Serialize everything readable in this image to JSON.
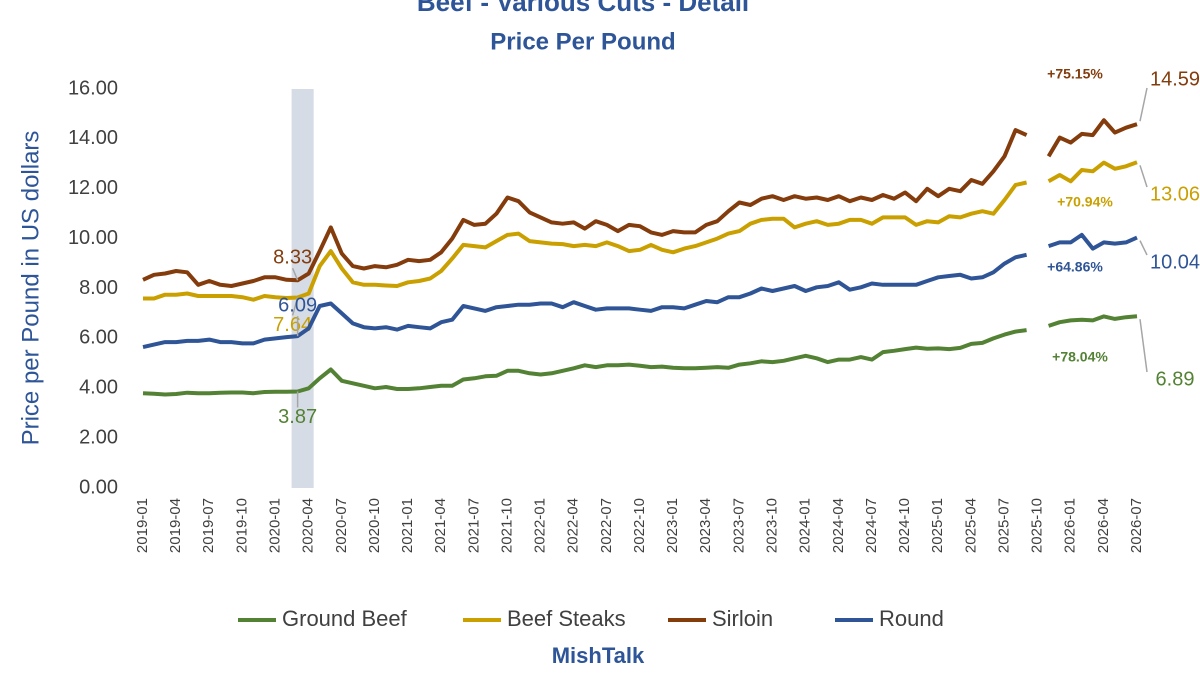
{
  "chart_data": {
    "type": "line",
    "title": "Beef - Various Cuts - Detail",
    "subtitle": "Price Per Pound",
    "y_label": "Price per Pound in US dollars",
    "source": "MishTalk",
    "categories": [
      "2019-01",
      null,
      null,
      "2019-04",
      null,
      null,
      "2019-07",
      null,
      null,
      "2019-10",
      null,
      null,
      "2020-01",
      null,
      null,
      "2020-04",
      null,
      null,
      "2020-07",
      null,
      null,
      "2020-10",
      null,
      null,
      "2021-01",
      null,
      null,
      "2021-04",
      null,
      null,
      "2021-07",
      null,
      null,
      "2021-10",
      null,
      null,
      "2022-01",
      null,
      null,
      "2022-04",
      null,
      null,
      "2022-07",
      null,
      null,
      "2022-10",
      null,
      null,
      "2023-01",
      null,
      null,
      "2023-04",
      null,
      null,
      "2023-07",
      null,
      null,
      "2023-10",
      null,
      null,
      "2024-01",
      null,
      null,
      "2024-04",
      null,
      null,
      "2024-07",
      null,
      null,
      "2024-10",
      null,
      null,
      "2025-01",
      null,
      null,
      "2025-04",
      null,
      null,
      "2025-07",
      null,
      null,
      "2025-10",
      null,
      null,
      "2026-01",
      null,
      null,
      "2026-04",
      null,
      null,
      "2026-07"
    ],
    "ylim": [
      0,
      16
    ],
    "yticks": [
      {
        "value": 0,
        "label": "0.00"
      },
      {
        "value": 2,
        "label": "2.00"
      },
      {
        "value": 4,
        "label": "4.00"
      },
      {
        "value": 6,
        "label": "6.00"
      },
      {
        "value": 8,
        "label": "8.00"
      },
      {
        "value": 10,
        "label": "10.00"
      },
      {
        "value": 12,
        "label": "12.00"
      },
      {
        "value": 14,
        "label": "14.00"
      },
      {
        "value": 16,
        "label": "16.00"
      }
    ],
    "grid": false,
    "recession_band": {
      "from": "2020-02",
      "to": "2020-04",
      "color": "#d6dce5"
    },
    "series": [
      {
        "name": "Ground Beef",
        "color": "#548235",
        "change_label": "+78.04%",
        "values": [
          3.8,
          3.78,
          3.75,
          3.77,
          3.82,
          3.8,
          3.8,
          3.82,
          3.83,
          3.83,
          3.8,
          3.85,
          3.86,
          3.86,
          3.87,
          4.0,
          4.4,
          4.75,
          4.3,
          4.2,
          4.1,
          4.0,
          4.05,
          3.97,
          3.97,
          4.0,
          4.05,
          4.1,
          4.1,
          4.35,
          4.4,
          4.48,
          4.5,
          4.7,
          4.7,
          4.6,
          4.55,
          4.6,
          4.7,
          4.8,
          4.92,
          4.85,
          4.92,
          4.92,
          4.95,
          4.9,
          4.85,
          4.87,
          4.82,
          4.8,
          4.8,
          4.82,
          4.85,
          4.82,
          4.95,
          5.0,
          5.08,
          5.05,
          5.1,
          5.2,
          5.3,
          5.2,
          5.05,
          5.15,
          5.15,
          5.25,
          5.15,
          5.45,
          5.5,
          5.57,
          5.63,
          5.58,
          5.6,
          5.57,
          5.62,
          5.78,
          5.82,
          6.0,
          6.15,
          6.27,
          6.33,
          null,
          6.5,
          6.65,
          6.72,
          6.75,
          6.72,
          6.88,
          6.78,
          6.85,
          6.89
        ],
        "value_labels": [
          null,
          null,
          null,
          null,
          null,
          null,
          null,
          null,
          null,
          null,
          null,
          null,
          null,
          null,
          "3.87",
          null,
          null,
          null,
          null,
          null,
          null,
          null,
          null,
          null,
          null,
          null,
          null,
          null,
          null,
          null,
          null,
          null,
          null,
          null,
          null,
          null,
          null,
          null,
          null,
          null,
          null,
          null,
          null,
          null,
          null,
          null,
          null,
          null,
          null,
          null,
          null,
          null,
          null,
          null,
          null,
          null,
          null,
          null,
          null,
          null,
          null,
          null,
          null,
          null,
          null,
          null,
          null,
          null,
          null,
          null,
          null,
          null,
          null,
          null,
          null,
          null,
          null,
          null,
          null,
          null,
          null,
          null,
          null,
          null,
          null,
          null,
          null,
          null,
          null,
          null,
          "6.89"
        ]
      },
      {
        "name": "Beef Steaks",
        "color": "#c9a000",
        "change_label": "+70.94%",
        "values": [
          7.6,
          7.6,
          7.75,
          7.75,
          7.8,
          7.7,
          7.7,
          7.7,
          7.7,
          7.65,
          7.55,
          7.7,
          7.65,
          7.62,
          7.64,
          7.8,
          8.9,
          9.5,
          8.8,
          8.25,
          8.15,
          8.15,
          8.12,
          8.1,
          8.25,
          8.3,
          8.4,
          8.7,
          9.2,
          9.75,
          9.7,
          9.65,
          9.9,
          10.15,
          10.2,
          9.9,
          9.85,
          9.8,
          9.78,
          9.7,
          9.75,
          9.7,
          9.85,
          9.7,
          9.5,
          9.55,
          9.75,
          9.55,
          9.45,
          9.6,
          9.7,
          9.85,
          10.0,
          10.2,
          10.3,
          10.6,
          10.75,
          10.8,
          10.8,
          10.45,
          10.6,
          10.7,
          10.55,
          10.6,
          10.75,
          10.75,
          10.6,
          10.85,
          10.85,
          10.85,
          10.55,
          10.7,
          10.65,
          10.9,
          10.85,
          11.0,
          11.1,
          11.0,
          11.55,
          12.15,
          12.25,
          null,
          12.3,
          12.55,
          12.3,
          12.75,
          12.7,
          13.05,
          12.8,
          12.9,
          13.06
        ],
        "value_labels": [
          null,
          null,
          null,
          null,
          null,
          null,
          null,
          null,
          null,
          null,
          null,
          null,
          null,
          null,
          "7.64",
          null,
          null,
          null,
          null,
          null,
          null,
          null,
          null,
          null,
          null,
          null,
          null,
          null,
          null,
          null,
          null,
          null,
          null,
          null,
          null,
          null,
          null,
          null,
          null,
          null,
          null,
          null,
          null,
          null,
          null,
          null,
          null,
          null,
          null,
          null,
          null,
          null,
          null,
          null,
          null,
          null,
          null,
          null,
          null,
          null,
          null,
          null,
          null,
          null,
          null,
          null,
          null,
          null,
          null,
          null,
          null,
          null,
          null,
          null,
          null,
          null,
          null,
          null,
          null,
          null,
          null,
          null,
          null,
          null,
          null,
          null,
          null,
          null,
          null,
          null,
          "13.06"
        ]
      },
      {
        "name": "Sirloin",
        "color": "#843c0c",
        "change_label": "+75.15%",
        "values": [
          8.35,
          8.55,
          8.6,
          8.7,
          8.65,
          8.15,
          8.3,
          8.15,
          8.1,
          8.2,
          8.3,
          8.45,
          8.45,
          8.35,
          8.33,
          8.6,
          9.5,
          10.45,
          9.4,
          8.9,
          8.8,
          8.9,
          8.85,
          8.95,
          9.15,
          9.1,
          9.15,
          9.45,
          10.0,
          10.75,
          10.55,
          10.6,
          11.0,
          11.65,
          11.5,
          11.05,
          10.85,
          10.65,
          10.6,
          10.65,
          10.4,
          10.7,
          10.55,
          10.3,
          10.55,
          10.5,
          10.25,
          10.15,
          10.3,
          10.25,
          10.25,
          10.55,
          10.7,
          11.1,
          11.45,
          11.35,
          11.6,
          11.7,
          11.55,
          11.7,
          11.6,
          11.65,
          11.55,
          11.7,
          11.5,
          11.65,
          11.55,
          11.75,
          11.6,
          11.85,
          11.5,
          12.0,
          11.7,
          12.0,
          11.9,
          12.35,
          12.2,
          12.7,
          13.3,
          14.35,
          14.15,
          null,
          13.3,
          14.05,
          13.85,
          14.2,
          14.15,
          14.75,
          14.25,
          14.45,
          14.59
        ],
        "value_labels": [
          null,
          null,
          null,
          null,
          null,
          null,
          null,
          null,
          null,
          null,
          null,
          null,
          null,
          null,
          "8.33",
          null,
          null,
          null,
          null,
          null,
          null,
          null,
          null,
          null,
          null,
          null,
          null,
          null,
          null,
          null,
          null,
          null,
          null,
          null,
          null,
          null,
          null,
          null,
          null,
          null,
          null,
          null,
          null,
          null,
          null,
          null,
          null,
          null,
          null,
          null,
          null,
          null,
          null,
          null,
          null,
          null,
          null,
          null,
          null,
          null,
          null,
          null,
          null,
          null,
          null,
          null,
          null,
          null,
          null,
          null,
          null,
          null,
          null,
          null,
          null,
          null,
          null,
          null,
          null,
          null,
          null,
          null,
          null,
          null,
          null,
          null,
          null,
          null,
          null,
          null,
          "14.59"
        ]
      },
      {
        "name": "Round",
        "color": "#2f5597",
        "change_label": "+64.86%",
        "values": [
          5.65,
          5.75,
          5.85,
          5.85,
          5.9,
          5.9,
          5.95,
          5.85,
          5.85,
          5.8,
          5.8,
          5.95,
          6.0,
          6.05,
          6.09,
          6.4,
          7.3,
          7.4,
          7.0,
          6.6,
          6.45,
          6.4,
          6.45,
          6.35,
          6.5,
          6.45,
          6.4,
          6.65,
          6.75,
          7.3,
          7.2,
          7.1,
          7.25,
          7.3,
          7.35,
          7.35,
          7.4,
          7.4,
          7.25,
          7.45,
          7.3,
          7.15,
          7.2,
          7.2,
          7.2,
          7.15,
          7.1,
          7.25,
          7.25,
          7.2,
          7.35,
          7.5,
          7.45,
          7.65,
          7.65,
          7.8,
          8.0,
          7.9,
          8.0,
          8.1,
          7.9,
          8.05,
          8.1,
          8.25,
          7.95,
          8.05,
          8.2,
          8.15,
          8.15,
          8.15,
          8.15,
          8.3,
          8.45,
          8.5,
          8.55,
          8.4,
          8.45,
          8.65,
          9.0,
          9.25,
          9.35,
          null,
          9.7,
          9.85,
          9.85,
          10.15,
          9.6,
          9.85,
          9.8,
          9.85,
          10.04
        ],
        "value_labels": [
          null,
          null,
          null,
          null,
          null,
          null,
          null,
          null,
          null,
          null,
          null,
          null,
          null,
          null,
          "6.09",
          null,
          null,
          null,
          null,
          null,
          null,
          null,
          null,
          null,
          null,
          null,
          null,
          null,
          null,
          null,
          null,
          null,
          null,
          null,
          null,
          null,
          null,
          null,
          null,
          null,
          null,
          null,
          null,
          null,
          null,
          null,
          null,
          null,
          null,
          null,
          null,
          null,
          null,
          null,
          null,
          null,
          null,
          null,
          null,
          null,
          null,
          null,
          null,
          null,
          null,
          null,
          null,
          null,
          null,
          null,
          null,
          null,
          null,
          null,
          null,
          null,
          null,
          null,
          null,
          null,
          null,
          null,
          null,
          null,
          null,
          null,
          null,
          null,
          null,
          null,
          "10.04"
        ]
      }
    ]
  }
}
